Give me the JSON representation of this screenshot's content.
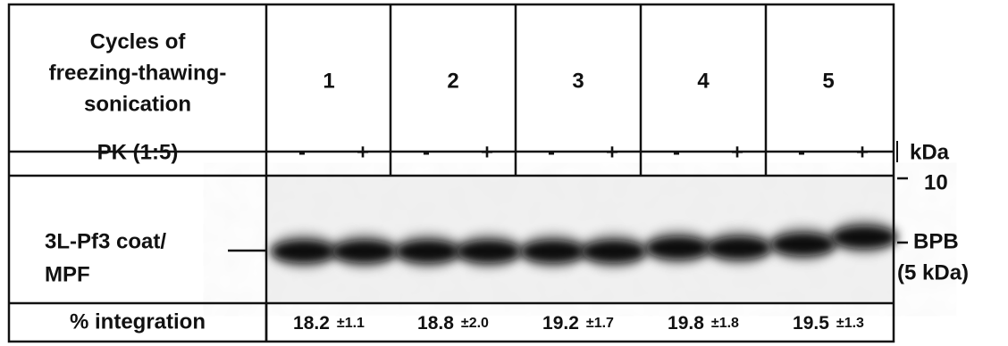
{
  "header": {
    "label_lines": [
      "Cycles of",
      "freezing-thawing-",
      "sonication"
    ],
    "cycles": [
      "1",
      "2",
      "3",
      "4",
      "5"
    ]
  },
  "pk": {
    "label": "PK (1:5)",
    "treatments": [
      "-",
      "+",
      "-",
      "+",
      "-",
      "+",
      "-",
      "+",
      "-",
      "+"
    ]
  },
  "blot": {
    "label_lines": [
      "3L-Pf3 coat/",
      "MPF"
    ]
  },
  "markers": {
    "unit": "kDa",
    "top": "10",
    "dye": "BPB",
    "dye_size": "(5 kDa)"
  },
  "integration": {
    "label": "% integration",
    "values": [
      {
        "mean": "18.2",
        "sd": "±1.1"
      },
      {
        "mean": "18.8",
        "sd": "±2.0"
      },
      {
        "mean": "19.2",
        "sd": "±1.7"
      },
      {
        "mean": "19.8",
        "sd": "±1.8"
      },
      {
        "mean": "19.5",
        "sd": "±1.3"
      }
    ]
  }
}
